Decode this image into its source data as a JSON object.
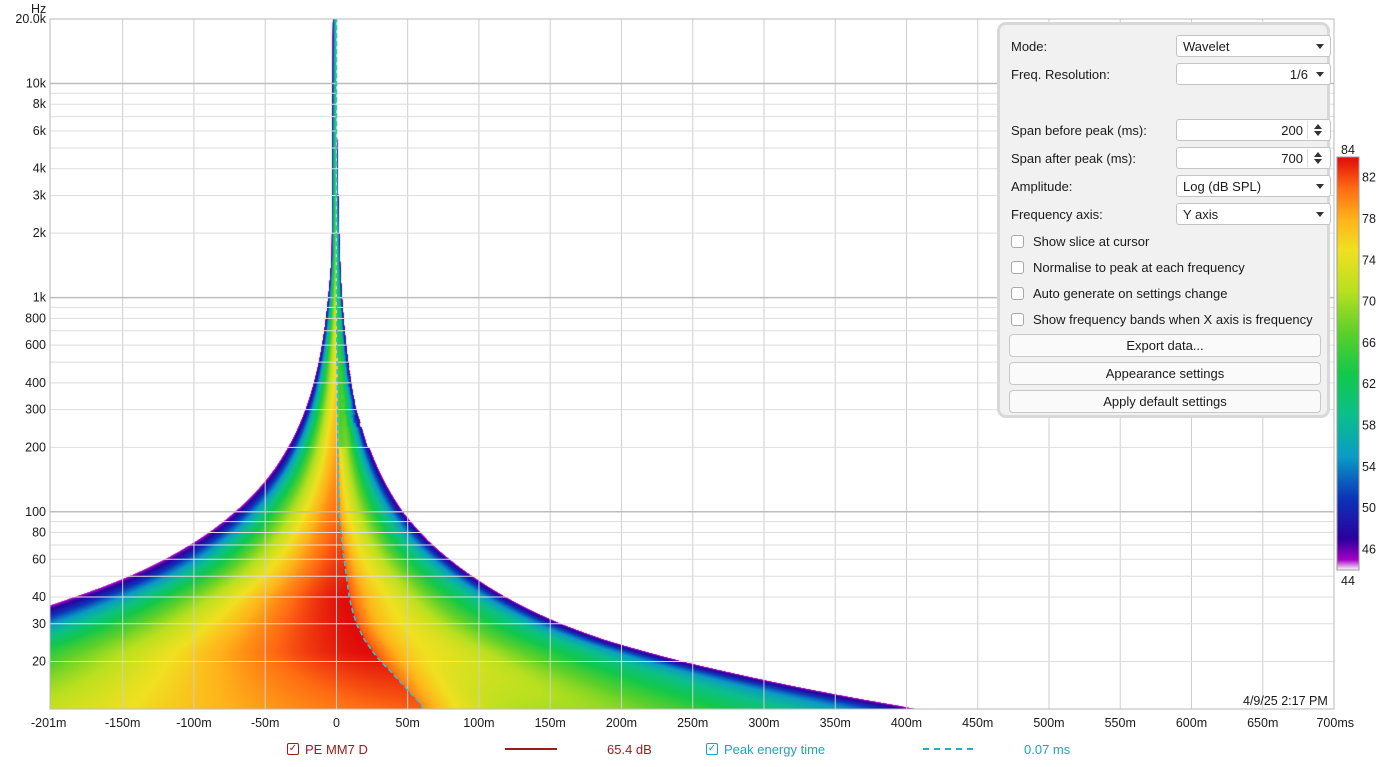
{
  "chart_data": {
    "type": "heatmap",
    "subtype": "wavelet spectrogram",
    "y_unit_label": "Hz",
    "x_scale": "linear",
    "y_scale": "log",
    "xlim": [
      -201,
      700
    ],
    "ylim": [
      12,
      20000
    ],
    "x_tick_labels": [
      "-201m",
      "-150m",
      "-100m",
      "-50m",
      "0",
      "50m",
      "100m",
      "150m",
      "200m",
      "250m",
      "300m",
      "350m",
      "400m",
      "450m",
      "500m",
      "550m",
      "600m",
      "650m",
      "700ms"
    ],
    "x_tick_values": [
      -201,
      -150,
      -100,
      -50,
      0,
      50,
      100,
      150,
      200,
      250,
      300,
      350,
      400,
      450,
      500,
      550,
      600,
      650,
      700
    ],
    "y_tick_labels": [
      "20",
      "30",
      "40",
      "60",
      "80",
      "100",
      "200",
      "300",
      "400",
      "600",
      "800",
      "1k",
      "2k",
      "3k",
      "4k",
      "6k",
      "8k",
      "10k",
      "20.0k"
    ],
    "y_tick_values": [
      20,
      30,
      40,
      60,
      80,
      100,
      200,
      300,
      400,
      600,
      800,
      1000,
      2000,
      3000,
      4000,
      6000,
      8000,
      10000,
      20000
    ],
    "grid": true,
    "colorbar": {
      "min": 44,
      "max": 84,
      "tick_labels": [
        "84",
        "82",
        "78",
        "74",
        "70",
        "66",
        "62",
        "58",
        "54",
        "50",
        "46",
        "44"
      ],
      "tick_values": [
        84,
        82,
        78,
        74,
        70,
        66,
        62,
        58,
        54,
        50,
        46,
        44
      ],
      "stops": [
        {
          "level": 44,
          "color": "#ffffff"
        },
        {
          "level": 45,
          "color": "#a300c4"
        },
        {
          "level": 47,
          "color": "#2a009c"
        },
        {
          "level": 51,
          "color": "#0c35b8"
        },
        {
          "level": 55,
          "color": "#0a9cc4"
        },
        {
          "level": 59,
          "color": "#0bbf8a"
        },
        {
          "level": 63,
          "color": "#12c84a"
        },
        {
          "level": 67,
          "color": "#5cd02a"
        },
        {
          "level": 71,
          "color": "#b8e01f"
        },
        {
          "level": 75,
          "color": "#f0e020"
        },
        {
          "level": 78,
          "color": "#ffb21a"
        },
        {
          "level": 81,
          "color": "#ff6a12"
        },
        {
          "level": 84,
          "color": "#e00a0a"
        }
      ]
    },
    "series": [
      {
        "name": "PE MM7 D",
        "value_label": "65.4 dB",
        "color": "#a11a1a"
      },
      {
        "name": "Peak energy time",
        "value_label": "0.07 ms",
        "color": "#1ab3c6"
      }
    ],
    "peak_energy_curve": {
      "freq": [
        20000,
        1000,
        200,
        100,
        70,
        50,
        40,
        35,
        30,
        25,
        22,
        20,
        18,
        16,
        14,
        12.5
      ],
      "time_ms": [
        0,
        0,
        1,
        2,
        4,
        7,
        9,
        11,
        14,
        20,
        26,
        31,
        38,
        45,
        53,
        60
      ]
    }
  },
  "settings_panel": {
    "mode_label": "Mode:",
    "mode_value": "Wavelet",
    "freq_res_label": "Freq. Resolution:",
    "freq_res_value": "1/6",
    "span_before_label": "Span before peak (ms):",
    "span_before_value": "200",
    "span_after_label": "Span after peak (ms):",
    "span_after_value": "700",
    "amplitude_label": "Amplitude:",
    "amplitude_value": "Log (dB SPL)",
    "freq_axis_label": "Frequency axis:",
    "freq_axis_value": "Y axis",
    "checkboxes": [
      "Show slice at cursor",
      "Normalise to peak at each frequency",
      "Auto generate on settings change",
      "Show frequency bands when X axis is frequency"
    ],
    "buttons": [
      "Export data...",
      "Appearance settings",
      "Apply default settings"
    ]
  },
  "timestamp": "4/9/25 2:17 PM"
}
